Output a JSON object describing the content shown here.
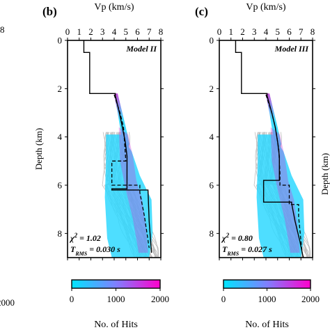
{
  "panels": [
    {
      "id": "b",
      "panel_label": "(b)",
      "model_label": "Model II",
      "chi2_label": "χ² = 1.02",
      "trms_label": "T_RMS = 0.030 s"
    },
    {
      "id": "c",
      "panel_label": "(c)",
      "model_label": "Model III",
      "chi2_label": "χ² = 0.80",
      "trms_label": "T_RMS = 0.027 s"
    }
  ],
  "left_cut": {
    "tick_8": "8",
    "tick_2000": "2000"
  },
  "right_cut": {
    "ylabel_fragment": "Depth (km)"
  },
  "colors": {
    "colorbar_start": "#00e5ff",
    "colorbar_mid": "#7f7fff",
    "colorbar_end": "#ff00cc",
    "gray_paths": "#bdbdbd",
    "hits_cyan": "#2fd8ff",
    "hits_magenta": "#c23dd6",
    "model_line": "#000000"
  },
  "chart_data": [
    {
      "type": "line",
      "title": "",
      "xlabel": "Vp (km/s)",
      "ylabel": "Depth (km)",
      "xlim": [
        0,
        8
      ],
      "ylim": [
        9,
        0
      ],
      "x_ticks": [
        0,
        1,
        2,
        3,
        4,
        5,
        6,
        7,
        8
      ],
      "y_ticks": [
        0,
        2,
        4,
        6,
        8
      ],
      "series": [
        {
          "name": "",
          "style": "solid",
          "x": [
            1.4,
            1.4,
            1.9,
            1.9,
            4.1,
            4.1,
            4.45,
            4.7,
            4.95,
            5.1,
            5.1,
            3.8,
            3.8,
            6.9,
            7.0,
            7.2
          ],
          "y": [
            0,
            0.5,
            0.5,
            2.2,
            2.2,
            2.3,
            3.0,
            3.6,
            4.2,
            4.8,
            6.15,
            6.15,
            6.2,
            6.2,
            7.5,
            8.8
          ]
        },
        {
          "name": "",
          "style": "dashed",
          "x": [
            4.0,
            4.1,
            4.5,
            4.8,
            5.0,
            3.8,
            3.8,
            6.2,
            6.2,
            6.6,
            7.0
          ],
          "y": [
            2.25,
            2.4,
            3.0,
            3.6,
            5.0,
            5.0,
            6.0,
            6.0,
            6.3,
            7.3,
            8.6
          ]
        }
      ],
      "colorbar": {
        "label": "No. of Hits",
        "range": [
          0,
          2000
        ],
        "ticks": [
          0,
          1000,
          2000
        ]
      }
    },
    {
      "type": "line",
      "title": "",
      "xlabel": "Vp (km/s)",
      "ylabel": "",
      "xlim": [
        0,
        8
      ],
      "ylim": [
        9,
        0
      ],
      "x_ticks": [
        0,
        1,
        2,
        3,
        4,
        5,
        6,
        7,
        8
      ],
      "y_ticks": [
        0,
        2,
        4,
        6,
        8
      ],
      "series": [
        {
          "name": "",
          "style": "solid",
          "x": [
            1.4,
            1.4,
            1.9,
            1.9,
            4.1,
            4.1,
            4.5,
            4.8,
            5.0,
            5.15,
            5.15,
            3.8,
            3.8,
            6.2,
            6.2,
            6.5,
            6.9,
            7.2
          ],
          "y": [
            0,
            0.5,
            0.5,
            2.2,
            2.2,
            2.3,
            3.0,
            3.6,
            4.2,
            4.8,
            5.8,
            5.8,
            6.7,
            6.7,
            6.75,
            7.5,
            8.3,
            9.0
          ]
        },
        {
          "name": "",
          "style": "dashed",
          "x": [
            4.0,
            4.1,
            4.5,
            4.8,
            5.1,
            5.2,
            5.2,
            6.0,
            6.0,
            6.8,
            6.8,
            7.1
          ],
          "y": [
            2.25,
            2.4,
            3.0,
            3.6,
            4.5,
            5.5,
            6.0,
            6.0,
            6.8,
            6.8,
            7.3,
            8.8
          ]
        }
      ],
      "colorbar": {
        "label": "No. of Hits",
        "range": [
          0,
          2000
        ],
        "ticks": [
          0,
          1000,
          2000
        ]
      }
    }
  ]
}
